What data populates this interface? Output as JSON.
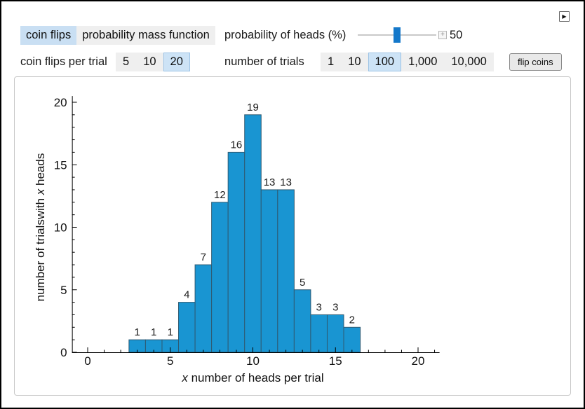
{
  "window": {
    "expander_icon": "▶"
  },
  "controls": {
    "view_tabs": {
      "options": [
        "coin flips",
        "probability mass function"
      ],
      "selected": "coin flips"
    },
    "probability_slider": {
      "label": "probability of heads (%)",
      "value": "50",
      "fraction": 0.5,
      "plus_icon": "+"
    },
    "flips_per_trial": {
      "label": "coin flips per trial",
      "options": [
        "5",
        "10",
        "20"
      ],
      "selected": "20"
    },
    "num_trials": {
      "label": "number of trials",
      "options": [
        "1",
        "10",
        "100",
        "1,000",
        "10,000"
      ],
      "selected": "100"
    },
    "flip_button": "flip coins"
  },
  "chart_data": {
    "type": "bar",
    "title": "",
    "x": [
      3,
      4,
      5,
      6,
      7,
      8,
      9,
      10,
      11,
      12,
      13,
      14,
      15,
      16
    ],
    "values": [
      1,
      1,
      1,
      4,
      7,
      12,
      16,
      19,
      13,
      13,
      5,
      3,
      3,
      2
    ],
    "xlabel": "x number of heads per trial",
    "ylabel": "number of trialswith x heads",
    "xlim": [
      -1,
      21.3
    ],
    "ylim": [
      0,
      20.5
    ],
    "xticks": [
      0,
      5,
      10,
      15,
      20
    ],
    "yticks": [
      0,
      5,
      10,
      15,
      20
    ],
    "minor_tick_step": 1,
    "bar_width": 1,
    "grid": false,
    "legend": null,
    "colors": {
      "bar_fill": "#1995d2",
      "bar_edge": "#2e5a72",
      "axis": "#000000",
      "label_text": "#1a1a1a"
    }
  }
}
